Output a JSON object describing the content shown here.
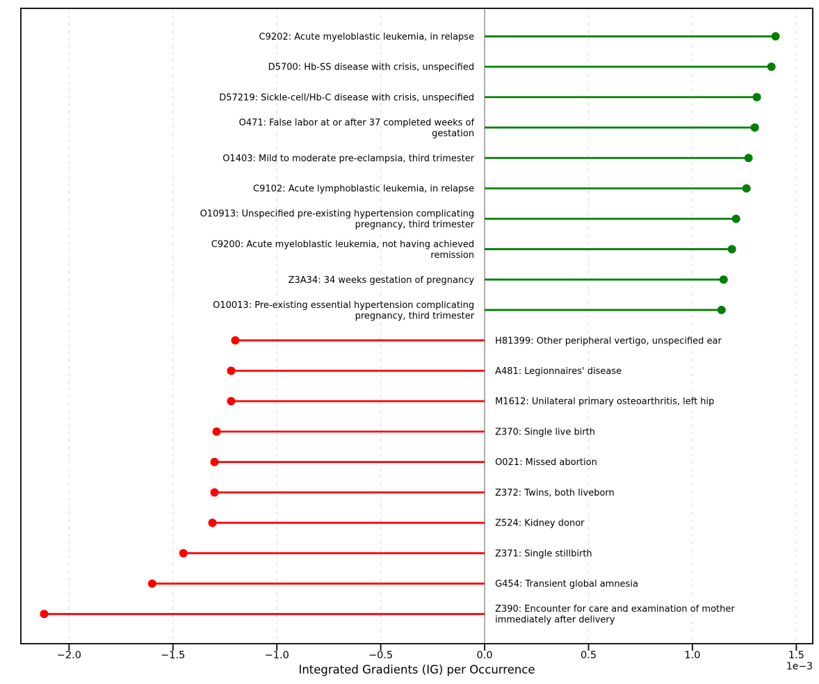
{
  "chart_data": {
    "type": "lollipop",
    "orientation": "horizontal",
    "title": "",
    "xlabel": "Integrated Gradients (IG) per Occurrence",
    "ylabel": "",
    "offset_text": "1e−3",
    "value_unit_multiplier": "1e-3",
    "xlim": [
      -2.232,
      1.579
    ],
    "x_ticks": [
      -2.0,
      -1.5,
      -1.0,
      -0.5,
      0.0,
      0.5,
      1.0,
      1.5
    ],
    "x_tick_labels": [
      "−2.0",
      "−1.5",
      "−1.0",
      "−0.5",
      "0.0",
      "0.5",
      "1.0",
      "1.5"
    ],
    "grid": "vertical-dashed",
    "legend": "none",
    "colors": {
      "positive": "#008000",
      "negative": "#ff0000",
      "zero_line": "#8a8a8a",
      "gridline": "#dcdcdc",
      "frame": "#1a1a1a",
      "text": "#000000"
    },
    "items": [
      {
        "code": "C9202",
        "sign": "positive",
        "value": 1.4,
        "label": "C9202: Acute myeloblastic leukemia, in relapse",
        "label_lines": [
          "C9202: Acute myeloblastic leukemia, in relapse"
        ]
      },
      {
        "code": "D5700",
        "sign": "positive",
        "value": 1.38,
        "label": "D5700: Hb-SS disease with crisis, unspecified",
        "label_lines": [
          "D5700: Hb-SS disease with crisis, unspecified"
        ]
      },
      {
        "code": "D57219",
        "sign": "positive",
        "value": 1.31,
        "label": "D57219: Sickle-cell/Hb-C disease with crisis, unspecified",
        "label_lines": [
          "D57219: Sickle-cell/Hb-C disease with crisis, unspecified"
        ]
      },
      {
        "code": "O471",
        "sign": "positive",
        "value": 1.3,
        "label": "O471: False labor at or after 37 completed weeks of gestation",
        "label_lines": [
          "O471: False labor at or after 37 completed weeks of",
          "gestation"
        ]
      },
      {
        "code": "O1403",
        "sign": "positive",
        "value": 1.27,
        "label": "O1403: Mild to moderate pre-eclampsia, third trimester",
        "label_lines": [
          "O1403: Mild to moderate pre-eclampsia, third trimester"
        ]
      },
      {
        "code": "C9102",
        "sign": "positive",
        "value": 1.26,
        "label": "C9102: Acute lymphoblastic leukemia, in relapse",
        "label_lines": [
          "C9102: Acute lymphoblastic leukemia, in relapse"
        ]
      },
      {
        "code": "O10913",
        "sign": "positive",
        "value": 1.21,
        "label": "O10913: Unspecified pre-existing hypertension complicating pregnancy, third trimester",
        "label_lines": [
          "O10913: Unspecified pre-existing hypertension complicating",
          "pregnancy, third trimester"
        ]
      },
      {
        "code": "C9200",
        "sign": "positive",
        "value": 1.19,
        "label": "C9200: Acute myeloblastic leukemia, not having achieved remission",
        "label_lines": [
          "C9200: Acute myeloblastic leukemia, not having achieved",
          "remission"
        ]
      },
      {
        "code": "Z3A34",
        "sign": "positive",
        "value": 1.15,
        "label": "Z3A34: 34 weeks gestation of pregnancy",
        "label_lines": [
          "Z3A34: 34 weeks gestation of pregnancy"
        ]
      },
      {
        "code": "O10013",
        "sign": "positive",
        "value": 1.14,
        "label": "O10013: Pre-existing essential hypertension complicating pregnancy, third trimester",
        "label_lines": [
          "O10013: Pre-existing essential hypertension complicating",
          "pregnancy, third trimester"
        ]
      },
      {
        "code": "H81399",
        "sign": "negative",
        "value": -1.2,
        "label": "H81399: Other peripheral vertigo, unspecified ear",
        "label_lines": [
          "H81399: Other peripheral vertigo, unspecified ear"
        ]
      },
      {
        "code": "A481",
        "sign": "negative",
        "value": -1.22,
        "label": "A481: Legionnaires' disease",
        "label_lines": [
          "A481: Legionnaires' disease"
        ]
      },
      {
        "code": "M1612",
        "sign": "negative",
        "value": -1.22,
        "label": "M1612: Unilateral primary osteoarthritis, left hip",
        "label_lines": [
          "M1612: Unilateral primary osteoarthritis, left hip"
        ]
      },
      {
        "code": "Z370",
        "sign": "negative",
        "value": -1.29,
        "label": "Z370: Single live birth",
        "label_lines": [
          "Z370: Single live birth"
        ]
      },
      {
        "code": "O021",
        "sign": "negative",
        "value": -1.3,
        "label": "O021: Missed abortion",
        "label_lines": [
          "O021: Missed abortion"
        ]
      },
      {
        "code": "Z372",
        "sign": "negative",
        "value": -1.3,
        "label": "Z372: Twins, both liveborn",
        "label_lines": [
          "Z372: Twins, both liveborn"
        ]
      },
      {
        "code": "Z524",
        "sign": "negative",
        "value": -1.31,
        "label": "Z524: Kidney donor",
        "label_lines": [
          "Z524: Kidney donor"
        ]
      },
      {
        "code": "Z371",
        "sign": "negative",
        "value": -1.45,
        "label": "Z371: Single stillbirth",
        "label_lines": [
          "Z371: Single stillbirth"
        ]
      },
      {
        "code": "G454",
        "sign": "negative",
        "value": -1.6,
        "label": "G454: Transient global amnesia",
        "label_lines": [
          "G454: Transient global amnesia"
        ]
      },
      {
        "code": "Z390",
        "sign": "negative",
        "value": -2.12,
        "label": "Z390: Encounter for care and examination of mother immediately after delivery",
        "label_lines": [
          "Z390: Encounter for care and examination of mother",
          "immediately after delivery"
        ]
      }
    ]
  }
}
